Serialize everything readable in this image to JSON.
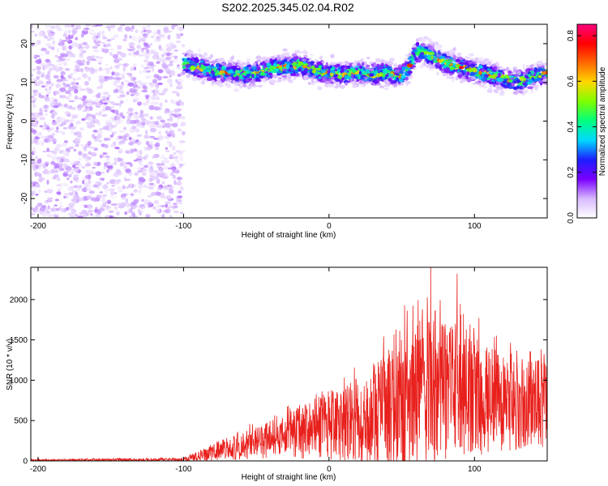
{
  "title": "S202.2025.345.02.04.R02",
  "chart_data": [
    {
      "type": "heatmap",
      "xlabel": "Height of straight line (km)",
      "ylabel": "Frequency (Hz)",
      "xlim": [
        -205,
        150
      ],
      "ylim": [
        -25,
        25
      ],
      "xticks": [
        -200,
        -100,
        0,
        100
      ],
      "yticks": [
        -20,
        -10,
        0,
        10,
        20
      ],
      "colorbar": {
        "label": "Normalized spectral amplitude",
        "range": [
          0,
          0.85
        ],
        "ticks": [
          "0.0",
          "0.2",
          "0.4",
          "0.6",
          "0.8"
        ],
        "tick_values": [
          0,
          0.2,
          0.4,
          0.6,
          0.8
        ],
        "colors": [
          "#ffffff",
          "#d7b8ff",
          "#7a00ff",
          "#1e1eff",
          "#00d8ff",
          "#00ff80",
          "#7cff00",
          "#ffd800",
          "#ff6a00",
          "#ff0000",
          "#ff0080"
        ]
      },
      "noise_region_x": [
        -205,
        -100
      ],
      "noise_amplitude": 0.12,
      "signal_track": {
        "x": [
          -100,
          -90,
          -80,
          -70,
          -60,
          -50,
          -40,
          -30,
          -20,
          -10,
          0,
          10,
          20,
          30,
          40,
          50,
          55,
          60,
          70,
          80,
          90,
          100,
          110,
          120,
          130,
          140,
          150
        ],
        "freq": [
          15,
          14,
          13,
          12.5,
          12,
          12.5,
          13.5,
          14,
          14.5,
          13,
          12.5,
          12,
          12.5,
          12,
          12.5,
          11.5,
          14,
          18,
          17,
          15,
          14,
          13,
          12,
          11,
          10,
          11.5,
          12.5
        ],
        "peak_amplitude": 0.8
      }
    },
    {
      "type": "line",
      "xlabel": "Height of straight line (km)",
      "ylabel": "SNR (10 * v/v)",
      "xlim": [
        -205,
        150
      ],
      "ylim": [
        0,
        2400
      ],
      "xticks": [
        -200,
        -100,
        0,
        100
      ],
      "yticks": [
        0,
        500,
        1000,
        1500,
        2000
      ],
      "color": "#e8201c",
      "envelope": {
        "x": [
          -205,
          -100,
          -90,
          -80,
          -70,
          -60,
          -50,
          -40,
          -30,
          -20,
          -10,
          0,
          10,
          20,
          30,
          40,
          50,
          60,
          70,
          80,
          90,
          100,
          110,
          120,
          130,
          140,
          150
        ],
        "mean": [
          10,
          15,
          60,
          110,
          150,
          180,
          220,
          270,
          320,
          360,
          400,
          430,
          460,
          500,
          560,
          620,
          700,
          760,
          820,
          860,
          850,
          820,
          780,
          760,
          740,
          720,
          700
        ],
        "spread": [
          10,
          20,
          60,
          110,
          150,
          180,
          200,
          230,
          280,
          330,
          380,
          420,
          460,
          520,
          620,
          720,
          820,
          880,
          940,
          900,
          820,
          760,
          700,
          640,
          600,
          560,
          520
        ]
      },
      "notable_peaks": [
        {
          "x": 70,
          "y": 2400
        },
        {
          "x": 88,
          "y": 2320
        },
        {
          "x": 52,
          "y": 1930
        },
        {
          "x": 73,
          "y": 1860
        }
      ]
    }
  ]
}
